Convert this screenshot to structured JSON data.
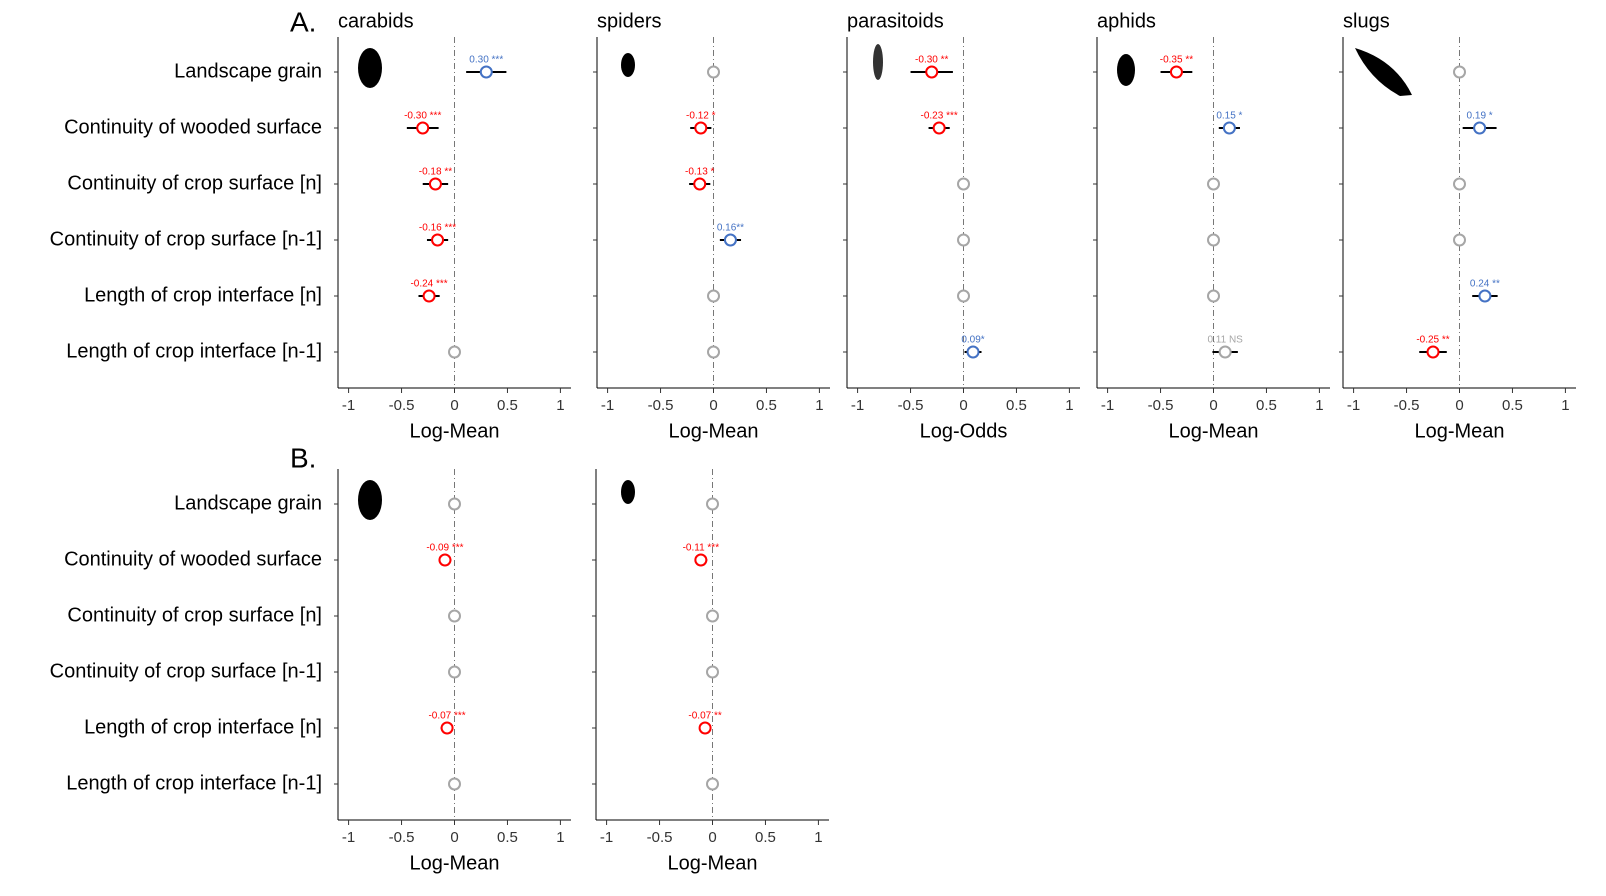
{
  "section_labels": [
    "A.",
    "B."
  ],
  "chart_data": [
    {
      "type": "dot",
      "title": "carabids",
      "xlabel": "Log-Mean",
      "categories": [
        "Landscape grain",
        "Continuity of wooded surface",
        "Continuity of crop surface [n]",
        "Continuity of crop surface [n-1]",
        "Length of crop interface [n]",
        "Length of crop interface [n-1]"
      ],
      "values": [
        0.3,
        -0.3,
        -0.18,
        -0.16,
        -0.24,
        0
      ],
      "errors": [
        0.19,
        0.15,
        0.12,
        0.1,
        0.1,
        null
      ],
      "value_labels": [
        "0.30 ***",
        "-0.30 ***",
        "-0.18 **",
        "-0.16 ***",
        "-0.24 ***",
        null
      ],
      "colors": [
        "#4472c4",
        "#ff0000",
        "#ff0000",
        "#ff0000",
        "#ff0000",
        "#a6a6a6"
      ],
      "xlim": [
        -1.1,
        1.1
      ],
      "xticks": [
        -1,
        -0.5,
        0,
        0.5,
        1
      ]
    },
    {
      "type": "dot",
      "title": "spiders",
      "xlabel": "Log-Mean",
      "values": [
        0,
        -0.12,
        -0.13,
        0.16,
        0,
        0
      ],
      "errors": [
        null,
        0.1,
        0.1,
        0.1,
        null,
        null
      ],
      "value_labels": [
        null,
        "-0.12 *",
        "-0.13 *",
        "0.16**",
        null,
        null
      ],
      "colors": [
        "#a6a6a6",
        "#ff0000",
        "#ff0000",
        "#4472c4",
        "#a6a6a6",
        "#a6a6a6"
      ],
      "xlim": [
        -1.1,
        1.1
      ],
      "xticks": [
        -1,
        -0.5,
        0,
        0.5,
        1
      ]
    },
    {
      "type": "dot",
      "title": "parasitoids",
      "xlabel": "Log-Odds",
      "values": [
        -0.3,
        -0.23,
        0,
        0,
        0,
        0.09
      ],
      "errors": [
        0.2,
        0.1,
        null,
        null,
        null,
        0.08
      ],
      "value_labels": [
        "-0.30 **",
        "-0.23 ***",
        null,
        null,
        null,
        "0.09*"
      ],
      "colors": [
        "#ff0000",
        "#ff0000",
        "#a6a6a6",
        "#a6a6a6",
        "#a6a6a6",
        "#4472c4"
      ],
      "xlim": [
        -1.1,
        1.1
      ],
      "xticks": [
        -1,
        -0.5,
        0,
        0.5,
        1
      ]
    },
    {
      "type": "dot",
      "title": "aphids",
      "xlabel": "Log-Mean",
      "values": [
        -0.35,
        0.15,
        0,
        0,
        0,
        0.11
      ],
      "errors": [
        0.15,
        0.1,
        null,
        null,
        null,
        0.12
      ],
      "value_labels": [
        "-0.35 **",
        "0.15 *",
        null,
        null,
        null,
        "0.11 NS"
      ],
      "colors": [
        "#ff0000",
        "#4472c4",
        "#a6a6a6",
        "#a6a6a6",
        "#a6a6a6",
        "#a6a6a6"
      ],
      "xlim": [
        -1.1,
        1.1
      ],
      "xticks": [
        -1,
        -0.5,
        0,
        0.5,
        1
      ]
    },
    {
      "type": "dot",
      "title": "slugs",
      "xlabel": "Log-Mean",
      "values": [
        0,
        0.19,
        0,
        0,
        0.24,
        -0.25
      ],
      "errors": [
        null,
        0.16,
        null,
        null,
        0.12,
        0.13
      ],
      "value_labels": [
        null,
        "0.19 *",
        null,
        null,
        "0.24 **",
        "-0.25 **"
      ],
      "colors": [
        "#a6a6a6",
        "#4472c4",
        "#a6a6a6",
        "#a6a6a6",
        "#4472c4",
        "#ff0000"
      ],
      "xlim": [
        -1.1,
        1.1
      ],
      "xticks": [
        -1,
        -0.5,
        0,
        0.5,
        1
      ]
    },
    {
      "type": "dot",
      "xlabel": "Log-Mean",
      "categories": [
        "Landscape grain",
        "Continuity of wooded surface",
        "Continuity of crop surface [n]",
        "Continuity of crop surface [n-1]",
        "Length of crop interface [n]",
        "Length of crop interface [n-1]"
      ],
      "values": [
        0,
        -0.09,
        0,
        0,
        -0.07,
        0
      ],
      "errors": [
        null,
        0.06,
        null,
        null,
        0.06,
        null
      ],
      "value_labels": [
        null,
        "-0.09 ***",
        null,
        null,
        "-0.07 ***",
        null
      ],
      "colors": [
        "#a6a6a6",
        "#ff0000",
        "#a6a6a6",
        "#a6a6a6",
        "#ff0000",
        "#a6a6a6"
      ],
      "xlim": [
        -1.1,
        1.1
      ],
      "xticks": [
        -1,
        -0.5,
        0,
        0.5,
        1
      ]
    },
    {
      "type": "dot",
      "xlabel": "Log-Mean",
      "values": [
        0,
        -0.11,
        0,
        0,
        -0.07,
        0
      ],
      "errors": [
        null,
        0.06,
        null,
        null,
        0.05,
        null
      ],
      "value_labels": [
        null,
        "-0.11 ***",
        null,
        null,
        "-0.07 **",
        null
      ],
      "colors": [
        "#a6a6a6",
        "#ff0000",
        "#a6a6a6",
        "#a6a6a6",
        "#ff0000",
        "#a6a6a6"
      ],
      "xlim": [
        -1.1,
        1.1
      ],
      "xticks": [
        -1,
        -0.5,
        0,
        0.5,
        1
      ]
    }
  ]
}
